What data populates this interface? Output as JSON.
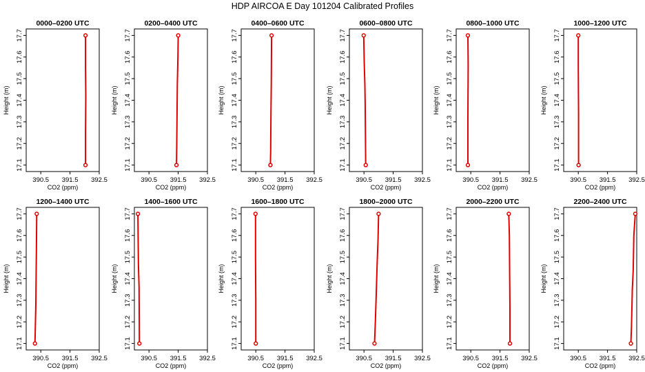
{
  "figure": {
    "title": "HDP AIRCOA E  Day 101204  Calibrated Profiles"
  },
  "chart_data": [
    {
      "type": "line",
      "title": "0000–0200 UTC",
      "xlabel": "CO2 (ppm)",
      "ylabel": "Height (m)",
      "xlim": [
        390,
        392.5
      ],
      "ylim": [
        17.07,
        17.73
      ],
      "xticks": [
        "390.5",
        "391.5",
        "392.5"
      ],
      "yticks": [
        "17.1",
        "17.2",
        "17.3",
        "17.4",
        "17.5",
        "17.6",
        "17.7"
      ],
      "grid": false,
      "series": [
        {
          "x": [
            392.03,
            392.03,
            392.04,
            392.03,
            392.03
          ],
          "y": [
            17.1,
            17.25,
            17.42,
            17.55,
            17.7
          ]
        }
      ],
      "endpoints": [
        {
          "x": 392.03,
          "y": 17.1
        },
        {
          "x": 392.03,
          "y": 17.7
        }
      ]
    },
    {
      "type": "line",
      "title": "0200–0400 UTC",
      "xlabel": "CO2 (ppm)",
      "ylabel": "Height (m)",
      "xlim": [
        390,
        392.5
      ],
      "ylim": [
        17.07,
        17.73
      ],
      "xticks": [
        "390.5",
        "391.5",
        "392.5"
      ],
      "yticks": [
        "17.1",
        "17.2",
        "17.3",
        "17.4",
        "17.5",
        "17.6",
        "17.7"
      ],
      "grid": false,
      "series": [
        {
          "x": [
            391.44,
            391.45,
            391.46,
            391.47,
            391.49,
            391.5
          ],
          "y": [
            17.1,
            17.2,
            17.33,
            17.47,
            17.6,
            17.7
          ]
        }
      ],
      "endpoints": [
        {
          "x": 391.44,
          "y": 17.1
        },
        {
          "x": 391.5,
          "y": 17.7
        }
      ]
    },
    {
      "type": "line",
      "title": "0400–0600 UTC",
      "xlabel": "CO2 (ppm)",
      "ylabel": "Height (m)",
      "xlim": [
        390,
        392.5
      ],
      "ylim": [
        17.07,
        17.73
      ],
      "xticks": [
        "390.5",
        "391.5",
        "392.5"
      ],
      "yticks": [
        "17.1",
        "17.2",
        "17.3",
        "17.4",
        "17.5",
        "17.6",
        "17.7"
      ],
      "grid": false,
      "series": [
        {
          "x": [
            391.0,
            391.01,
            391.02,
            391.03,
            391.04
          ],
          "y": [
            17.1,
            17.17,
            17.34,
            17.48,
            17.7
          ]
        }
      ],
      "endpoints": [
        {
          "x": 391.0,
          "y": 17.1
        },
        {
          "x": 391.04,
          "y": 17.7
        }
      ]
    },
    {
      "type": "line",
      "title": "0600–0800 UTC",
      "xlabel": "CO2 (ppm)",
      "ylabel": "Height (m)",
      "xlim": [
        390,
        392.5
      ],
      "ylim": [
        17.07,
        17.73
      ],
      "xticks": [
        "390.5",
        "391.5",
        "392.5"
      ],
      "yticks": [
        "17.1",
        "17.2",
        "17.3",
        "17.4",
        "17.5",
        "17.6",
        "17.7"
      ],
      "grid": false,
      "series": [
        {
          "x": [
            390.56,
            390.55,
            390.54,
            390.53,
            390.51,
            390.49
          ],
          "y": [
            17.1,
            17.24,
            17.39,
            17.47,
            17.57,
            17.7
          ]
        }
      ],
      "endpoints": [
        {
          "x": 390.56,
          "y": 17.1
        },
        {
          "x": 390.49,
          "y": 17.7
        }
      ]
    },
    {
      "type": "line",
      "title": "0800–1000 UTC",
      "xlabel": "CO2 (ppm)",
      "ylabel": "Height (m)",
      "xlim": [
        390,
        392.5
      ],
      "ylim": [
        17.07,
        17.73
      ],
      "xticks": [
        "390.5",
        "391.5",
        "392.5"
      ],
      "yticks": [
        "17.1",
        "17.2",
        "17.3",
        "17.4",
        "17.5",
        "17.6",
        "17.7"
      ],
      "grid": false,
      "series": [
        {
          "x": [
            390.4,
            390.4,
            390.41,
            390.4
          ],
          "y": [
            17.1,
            17.33,
            17.56,
            17.7
          ]
        }
      ],
      "endpoints": [
        {
          "x": 390.4,
          "y": 17.1
        },
        {
          "x": 390.4,
          "y": 17.7
        }
      ]
    },
    {
      "type": "line",
      "title": "1000–1200 UTC",
      "xlabel": "CO2 (ppm)",
      "ylabel": "Height (m)",
      "xlim": [
        390,
        392.5
      ],
      "ylim": [
        17.07,
        17.73
      ],
      "xticks": [
        "390.5",
        "391.5",
        "392.5"
      ],
      "yticks": [
        "17.1",
        "17.2",
        "17.3",
        "17.4",
        "17.5",
        "17.6",
        "17.7"
      ],
      "grid": false,
      "series": [
        {
          "x": [
            390.51,
            390.51,
            390.5,
            390.5
          ],
          "y": [
            17.1,
            17.33,
            17.55,
            17.7
          ]
        }
      ],
      "endpoints": [
        {
          "x": 390.51,
          "y": 17.1
        },
        {
          "x": 390.5,
          "y": 17.7
        }
      ]
    },
    {
      "type": "line",
      "title": "1200–1400 UTC",
      "xlabel": "CO2 (ppm)",
      "ylabel": "Height (m)",
      "xlim": [
        390,
        392.5
      ],
      "ylim": [
        17.07,
        17.73
      ],
      "xticks": [
        "390.5",
        "391.5",
        "392.5"
      ],
      "yticks": [
        "17.1",
        "17.2",
        "17.3",
        "17.4",
        "17.5",
        "17.6",
        "17.7"
      ],
      "grid": false,
      "series": [
        {
          "x": [
            390.3,
            390.31,
            390.33,
            390.34,
            390.35,
            390.36
          ],
          "y": [
            17.1,
            17.15,
            17.28,
            17.41,
            17.52,
            17.7
          ]
        }
      ],
      "endpoints": [
        {
          "x": 390.3,
          "y": 17.1
        },
        {
          "x": 390.36,
          "y": 17.7
        }
      ]
    },
    {
      "type": "line",
      "title": "1400–1600 UTC",
      "xlabel": "CO2 (ppm)",
      "ylabel": "Height (m)",
      "xlim": [
        390,
        392.5
      ],
      "ylim": [
        17.07,
        17.73
      ],
      "xticks": [
        "390.5",
        "391.5",
        "392.5"
      ],
      "yticks": [
        "17.1",
        "17.2",
        "17.3",
        "17.4",
        "17.5",
        "17.6",
        "17.7"
      ],
      "grid": false,
      "series": [
        {
          "x": [
            390.17,
            390.17,
            390.16,
            390.14,
            390.13,
            390.12
          ],
          "y": [
            17.1,
            17.14,
            17.36,
            17.46,
            17.57,
            17.7
          ]
        }
      ],
      "endpoints": [
        {
          "x": 390.17,
          "y": 17.1
        },
        {
          "x": 390.12,
          "y": 17.7
        }
      ]
    },
    {
      "type": "line",
      "title": "1600–1800 UTC",
      "xlabel": "CO2 (ppm)",
      "ylabel": "Height (m)",
      "xlim": [
        390,
        392.5
      ],
      "ylim": [
        17.07,
        17.73
      ],
      "xticks": [
        "390.5",
        "391.5",
        "392.5"
      ],
      "yticks": [
        "17.1",
        "17.2",
        "17.3",
        "17.4",
        "17.5",
        "17.6",
        "17.7"
      ],
      "grid": false,
      "series": [
        {
          "x": [
            390.5,
            390.5,
            390.49,
            390.49
          ],
          "y": [
            17.1,
            17.3,
            17.5,
            17.7
          ]
        }
      ],
      "endpoints": [
        {
          "x": 390.5,
          "y": 17.1
        },
        {
          "x": 390.49,
          "y": 17.7
        }
      ]
    },
    {
      "type": "line",
      "title": "1800–2000 UTC",
      "xlabel": "CO2 (ppm)",
      "ylabel": "Height (m)",
      "xlim": [
        390,
        392.5
      ],
      "ylim": [
        17.07,
        17.73
      ],
      "xticks": [
        "390.5",
        "391.5",
        "392.5"
      ],
      "yticks": [
        "17.1",
        "17.2",
        "17.3",
        "17.4",
        "17.5",
        "17.6",
        "17.7"
      ],
      "grid": false,
      "series": [
        {
          "x": [
            390.86,
            390.89,
            390.92,
            390.95,
            390.98,
            391.0
          ],
          "y": [
            17.1,
            17.2,
            17.33,
            17.47,
            17.58,
            17.7
          ]
        }
      ],
      "endpoints": [
        {
          "x": 390.86,
          "y": 17.1
        },
        {
          "x": 391.0,
          "y": 17.7
        }
      ]
    },
    {
      "type": "line",
      "title": "2000–2200 UTC",
      "xlabel": "CO2 (ppm)",
      "ylabel": "Height (m)",
      "xlim": [
        390,
        392.5
      ],
      "ylim": [
        17.07,
        17.73
      ],
      "xticks": [
        "390.5",
        "391.5",
        "392.5"
      ],
      "yticks": [
        "17.1",
        "17.2",
        "17.3",
        "17.4",
        "17.5",
        "17.6",
        "17.7"
      ],
      "grid": false,
      "series": [
        {
          "x": [
            391.84,
            391.84,
            391.83,
            391.82,
            391.8
          ],
          "y": [
            17.1,
            17.26,
            17.42,
            17.6,
            17.7
          ]
        }
      ],
      "endpoints": [
        {
          "x": 391.84,
          "y": 17.1
        },
        {
          "x": 391.8,
          "y": 17.7
        }
      ]
    },
    {
      "type": "line",
      "title": "2200–2400 UTC",
      "xlabel": "CO2 (ppm)",
      "ylabel": "Height (m)",
      "xlim": [
        390,
        392.5
      ],
      "ylim": [
        17.07,
        17.73
      ],
      "xticks": [
        "390.5",
        "391.5",
        "392.5"
      ],
      "yticks": [
        "17.1",
        "17.2",
        "17.3",
        "17.4",
        "17.5",
        "17.6",
        "17.7"
      ],
      "grid": false,
      "series": [
        {
          "x": [
            392.3,
            392.32,
            392.35,
            392.38,
            392.4,
            392.45
          ],
          "y": [
            17.1,
            17.18,
            17.35,
            17.44,
            17.6,
            17.7
          ]
        }
      ],
      "endpoints": [
        {
          "x": 392.3,
          "y": 17.1
        },
        {
          "x": 392.45,
          "y": 17.7
        }
      ]
    }
  ]
}
